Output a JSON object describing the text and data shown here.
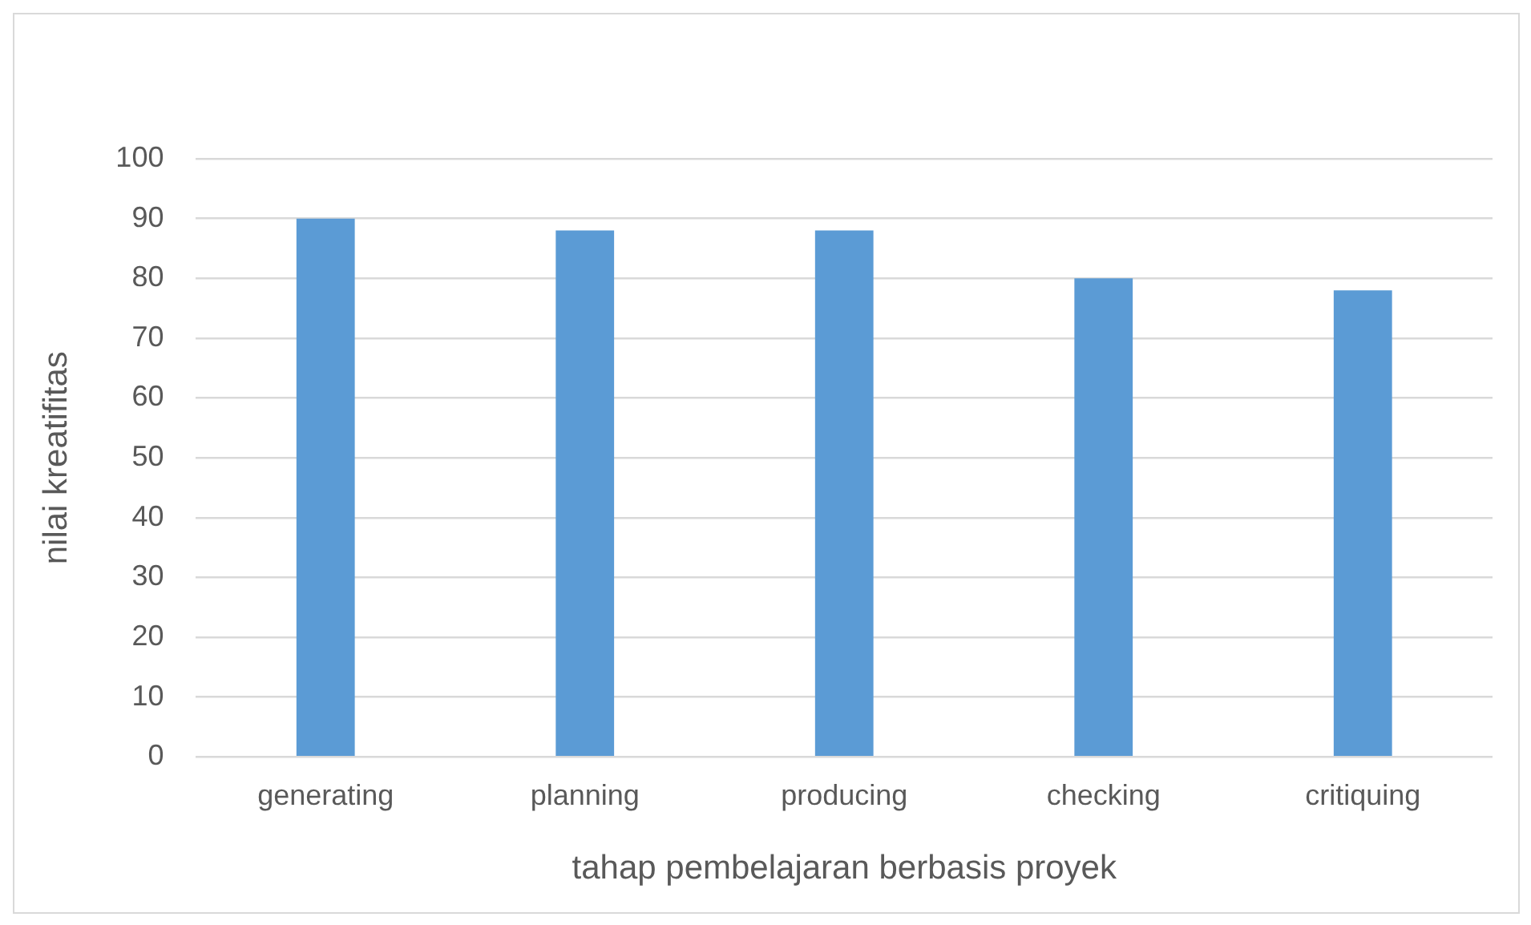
{
  "chart_data": {
    "type": "bar",
    "xlabel": "tahap pembelajaran berbasis proyek",
    "ylabel": "nilai kreatifitas",
    "categories": [
      "generating",
      "planning",
      "producing",
      "checking",
      "critiquing"
    ],
    "values": [
      90,
      88,
      88,
      80,
      78
    ],
    "color": "#5b9bd5",
    "ylim": [
      0,
      100
    ],
    "yticks": [
      0,
      10,
      20,
      30,
      40,
      50,
      60,
      70,
      80,
      90,
      100
    ],
    "grid": "y",
    "legend": false
  }
}
